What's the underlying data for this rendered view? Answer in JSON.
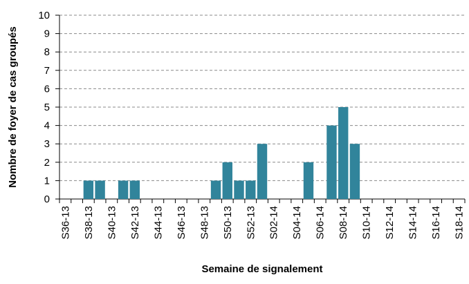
{
  "chart_data": {
    "type": "bar",
    "x_label": "Semaine de signalement",
    "y_label": "Nombre de foyer de cas groupés",
    "categories": [
      "S36-13",
      null,
      "S38-13",
      null,
      "S40-13",
      null,
      "S42-13",
      null,
      "S44-13",
      null,
      "S46-13",
      null,
      "S48-13",
      null,
      "S50-13",
      null,
      "S52-13",
      null,
      "S02-14",
      null,
      "S04-14",
      null,
      "S06-14",
      null,
      "S08-14",
      null,
      "S10-14",
      null,
      "S12-14",
      null,
      "S14-14",
      null,
      "S16-14",
      null,
      "S18-14"
    ],
    "values": [
      0,
      0,
      1,
      1,
      0,
      1,
      1,
      0,
      0,
      0,
      0,
      0,
      0,
      1,
      2,
      1,
      1,
      3,
      0,
      0,
      0,
      2,
      0,
      4,
      5,
      3,
      0,
      0,
      0,
      0,
      0,
      0,
      0,
      0,
      0
    ],
    "color": "#31849b",
    "ylim": [
      0,
      10
    ],
    "yticks": [
      0,
      1,
      2,
      3,
      4,
      5,
      6,
      7,
      8,
      9,
      10
    ],
    "grid": true
  }
}
